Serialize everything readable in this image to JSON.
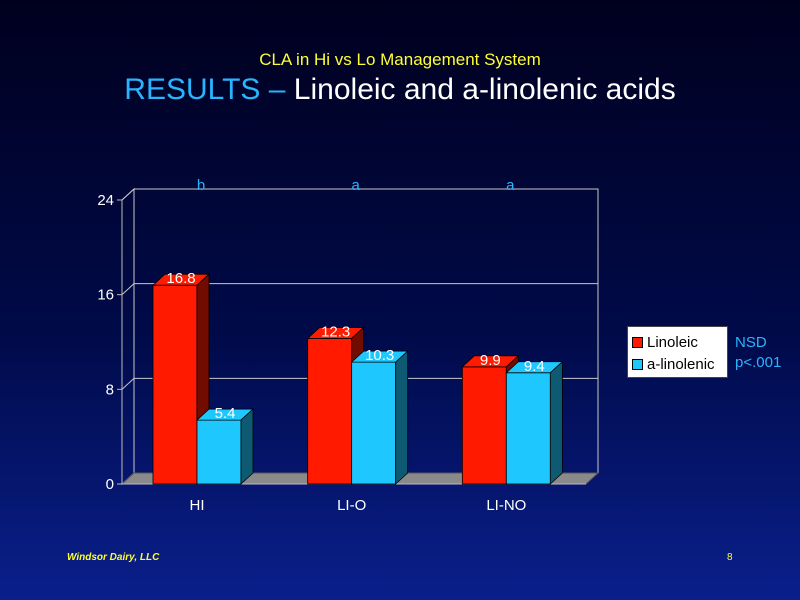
{
  "header": {
    "subtitle": "CLA in Hi vs Lo Management System",
    "title_accent": "RESULTS –",
    "title_rest": " Linoleic and a-linolenic acids"
  },
  "chart_data": {
    "type": "bar",
    "categories": [
      "HI",
      "LI-O",
      "LI-NO"
    ],
    "series": [
      {
        "name": "Linoleic",
        "values": [
          16.8,
          12.3,
          9.9
        ],
        "color": "#ff1a00",
        "labels": [
          "16.8",
          "12.3",
          "9.9"
        ]
      },
      {
        "name": "a-linolenic",
        "values": [
          5.4,
          10.3,
          9.4
        ],
        "color": "#1ec8ff",
        "labels": [
          "5.4",
          "10.3",
          "9.4"
        ]
      }
    ],
    "group_letters": [
      "b",
      "a",
      "a"
    ],
    "yticks": [
      "0",
      "8",
      "16",
      "24"
    ],
    "ylim": [
      0,
      24
    ],
    "grid": true,
    "legend_position": "right",
    "three_d": true
  },
  "legend": {
    "items": [
      "Linoleic",
      "a-linolenic"
    ]
  },
  "notes": {
    "nsd": "NSD",
    "p": "p<.001"
  },
  "footer": {
    "company": "Windsor Dairy, LLC",
    "page": "8"
  },
  "colors": {
    "accent_blue": "#2ab4ff",
    "yellow": "#ffff33",
    "red": "#ff1a00",
    "cyan": "#1ec8ff"
  }
}
